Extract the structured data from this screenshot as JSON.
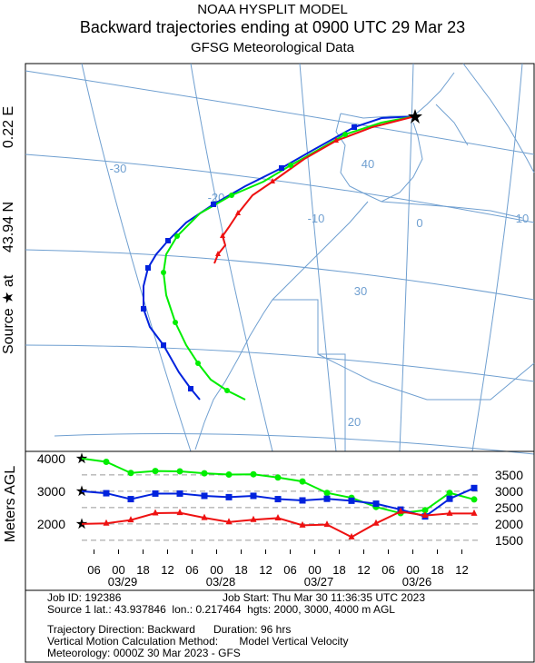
{
  "header": {
    "line1": "NOAA HYSPLIT MODEL",
    "line2": "Backward trajectories ending at 0900 UTC 29 Mar 23",
    "line3": "GFSG Meteorological Data"
  },
  "side_label": {
    "source": "Source ★ at",
    "lat": "43.94 N",
    "lon": "0.22 E"
  },
  "map": {
    "grid_labels": [
      "-30",
      "40",
      "-20",
      "-10",
      "0",
      "10",
      "30",
      "20"
    ]
  },
  "chart_data": {
    "type": "line",
    "ylabel": "Meters AGL",
    "x": [
      0,
      6,
      12,
      18,
      24,
      30,
      36,
      42,
      48,
      54,
      60,
      66,
      72,
      78,
      84,
      90,
      96
    ],
    "xlim": [
      0,
      96
    ],
    "xticks": [
      {
        "value": 3,
        "label": "06"
      },
      {
        "value": 9,
        "label": "00"
      },
      {
        "value": 15,
        "label": "18"
      },
      {
        "value": 21,
        "label": "12"
      },
      {
        "value": 27,
        "label": "06"
      },
      {
        "value": 33,
        "label": "00"
      },
      {
        "value": 39,
        "label": "18"
      },
      {
        "value": 45,
        "label": "12"
      },
      {
        "value": 51,
        "label": "06"
      },
      {
        "value": 57,
        "label": "00"
      },
      {
        "value": 63,
        "label": "18"
      },
      {
        "value": 69,
        "label": "12"
      },
      {
        "value": 75,
        "label": "06"
      },
      {
        "value": 81,
        "label": "00"
      },
      {
        "value": 87,
        "label": "18"
      },
      {
        "value": 93,
        "label": "12"
      }
    ],
    "date_labels": [
      {
        "value": 10,
        "label": "03/29"
      },
      {
        "value": 34,
        "label": "03/28"
      },
      {
        "value": 58,
        "label": "03/27"
      },
      {
        "value": 82,
        "label": "03/26"
      }
    ],
    "ylim": [
      1220,
      4220
    ],
    "yticks": [
      1500,
      2000,
      2500,
      3000,
      3500
    ],
    "source_heights": [
      4000,
      3000,
      2000
    ],
    "grid": true,
    "series": [
      {
        "name": "4000 m",
        "color": "#00ee00",
        "marker": "circle",
        "values": [
          4000,
          3900,
          3560,
          3620,
          3610,
          3550,
          3510,
          3520,
          3420,
          3300,
          2950,
          2800,
          2520,
          2330,
          2420,
          2950,
          2750
        ]
      },
      {
        "name": "3000 m",
        "color": "#0022dd",
        "marker": "square",
        "values": [
          3000,
          2940,
          2760,
          2930,
          2930,
          2860,
          2820,
          2860,
          2760,
          2720,
          2770,
          2710,
          2620,
          2440,
          2230,
          2770,
          3100
        ]
      },
      {
        "name": "2000 m",
        "color": "#ee1111",
        "marker": "triangle",
        "values": [
          2000,
          2020,
          2120,
          2330,
          2340,
          2190,
          2060,
          2130,
          2180,
          1960,
          1980,
          1600,
          2020,
          2380,
          2260,
          2320,
          2320
        ]
      }
    ]
  },
  "footer": {
    "job_id": "Job ID: 192386",
    "job_start": "Job Start: Thu Mar 30 11:36:35 UTC 2023",
    "source": "Source 1 lat.: 43.937846  lon.: 0.217464  hgts: 2000, 3000, 4000 m AGL",
    "direction": "Trajectory Direction: Backward      Duration: 96 hrs",
    "method": "Vertical Motion Calculation Method:       Model Vertical Velocity",
    "meteorology": "Meteorology: 0000Z 30 Mar 2023 - GFS"
  }
}
